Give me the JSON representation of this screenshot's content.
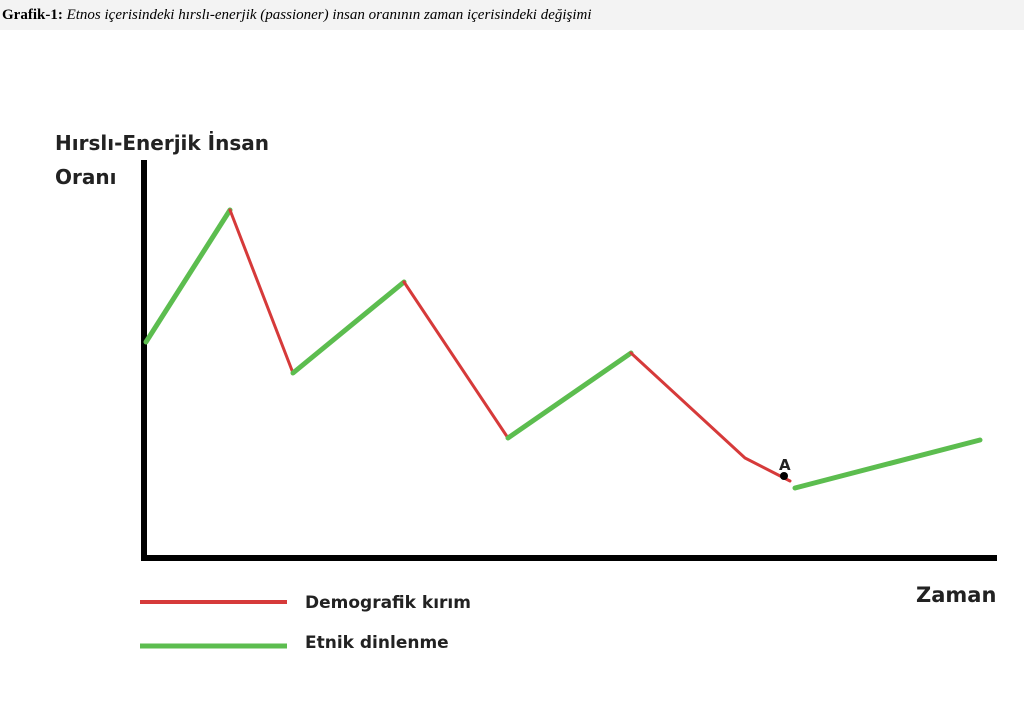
{
  "caption": {
    "label": "Grafik-1:",
    "text": "Etnos içerisindeki hırslı-enerjik (passioner) insan oranının zaman içerisindeki değişimi"
  },
  "figure": {
    "y_axis_label": [
      "Hırslı-Enerjik İnsan",
      "Oranı"
    ],
    "x_axis_label": "Zaman",
    "point_label": "A",
    "legend": [
      "Demografik kırım",
      "Etnik dinlenme"
    ]
  }
}
